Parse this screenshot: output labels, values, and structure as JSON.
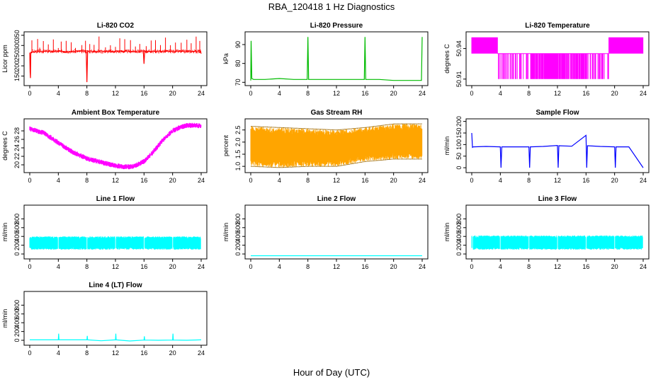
{
  "figure": {
    "title": "RBA_120418  1 Hz Diagnostics",
    "xlabel": "Hour of Day (UTC)"
  },
  "chart_data": [
    {
      "type": "line",
      "title": "Li-820 CO2",
      "ylabel": "Licor ppm",
      "color": "#ff0000",
      "xlim": [
        0,
        24
      ],
      "xticks": [
        0,
        4,
        8,
        12,
        16,
        20,
        24
      ],
      "ylim": [
        110,
        360
      ],
      "yticks": [
        150,
        200,
        250,
        300,
        350
      ],
      "series": [
        {
          "x": [
            0,
            0.05,
            0.1,
            0.15,
            0.3,
            1,
            2,
            3,
            4,
            5,
            6,
            7,
            7.9,
            8,
            8.1,
            9,
            10,
            11,
            12,
            13,
            14,
            15,
            15.9,
            16,
            16.1,
            17,
            18,
            19,
            20,
            21,
            22,
            23,
            23.9,
            24
          ],
          "y": [
            265,
            170,
            140,
            265,
            268,
            270,
            272,
            271,
            272,
            270,
            271,
            272,
            272,
            120,
            272,
            271,
            272,
            270,
            271,
            272,
            271,
            272,
            272,
            210,
            272,
            271,
            270,
            272,
            271,
            272,
            270,
            271,
            272,
            260
          ]
        }
      ],
      "spike_hours": [
        0.3,
        1.1,
        1.4,
        1.9,
        2.6,
        3.3,
        4.0,
        4.4,
        5.1,
        5.8,
        6.4,
        7.3,
        7.8,
        8.4,
        9.0,
        9.7,
        10.6,
        11.3,
        12.0,
        12.6,
        13.3,
        14.1,
        14.8,
        15.4,
        16.3,
        17.0,
        17.6,
        18.3,
        19.0,
        19.7,
        20.4,
        21.2,
        22.0,
        22.6,
        23.3,
        23.8
      ],
      "spike_peak": 345,
      "band": [
        265,
        280
      ]
    },
    {
      "type": "line",
      "title": "Li-820 Pressure",
      "ylabel": "kPa",
      "color": "#00bb00",
      "xlim": [
        0,
        24
      ],
      "xticks": [
        0,
        4,
        8,
        12,
        16,
        20,
        24
      ],
      "ylim": [
        69,
        96
      ],
      "yticks": [
        70,
        80,
        90
      ],
      "series": [
        {
          "x": [
            0,
            0.05,
            0.15,
            0.4,
            2,
            4,
            6,
            7.9,
            8,
            8.1,
            10,
            12,
            14,
            15.9,
            16,
            16.1,
            18,
            20,
            22,
            23.9,
            24
          ],
          "y": [
            71,
            92,
            72,
            71.5,
            71.5,
            72,
            71.5,
            71.5,
            94,
            71.5,
            71.5,
            71.5,
            71.5,
            71.5,
            94,
            71.5,
            71.5,
            71,
            71,
            71,
            94
          ]
        }
      ]
    },
    {
      "type": "line",
      "title": "Li-820 Temperature",
      "ylabel": "degrees C",
      "color": "#ff00ff",
      "xlim": [
        0,
        24
      ],
      "xticks": [
        0,
        4,
        8,
        12,
        16,
        20,
        24
      ],
      "ylim": [
        50.905,
        50.955
      ],
      "yticks": [
        50.91,
        50.94
      ],
      "levels": [
        50.91,
        50.935,
        50.96
      ],
      "state_intervals": [
        [
          0,
          3.6,
          "high"
        ],
        [
          3.6,
          4.1,
          "low"
        ],
        [
          4.1,
          19.2,
          "low"
        ],
        [
          19.2,
          24,
          "high"
        ]
      ]
    },
    {
      "type": "line",
      "title": "Ambient Box Temperature",
      "ylabel": "degrees C",
      "color": "#ff00ff",
      "xlim": [
        0,
        24
      ],
      "xticks": [
        0,
        4,
        8,
        12,
        16,
        20,
        24
      ],
      "ylim": [
        18.5,
        30.5
      ],
      "yticks": [
        20,
        22,
        24,
        26,
        28
      ],
      "series": [
        {
          "x": [
            0,
            2,
            4,
            6,
            8,
            10,
            12,
            13,
            14,
            15,
            16,
            17,
            18,
            19,
            20,
            21,
            22,
            23,
            24
          ],
          "y": [
            28.5,
            27.5,
            25.2,
            23,
            21.5,
            20.6,
            19.8,
            19.6,
            19.5,
            20,
            20.8,
            22.5,
            24.5,
            26.5,
            28,
            28.8,
            29.3,
            29.3,
            29.2
          ]
        }
      ],
      "band_halfwidth": 0.6
    },
    {
      "type": "line",
      "title": "Gas Stream RH",
      "ylabel": "percent",
      "color": "#ffa500",
      "xlim": [
        0,
        24
      ],
      "xticks": [
        0,
        4,
        8,
        12,
        16,
        20,
        24
      ],
      "ylim": [
        0.8,
        2.9
      ],
      "yticks": [
        1.0,
        1.5,
        2.0,
        2.5
      ],
      "series": [
        {
          "name": "upper",
          "x": [
            0,
            4,
            8,
            12,
            16,
            20,
            24
          ],
          "y": [
            2.65,
            2.6,
            2.55,
            2.5,
            2.6,
            2.75,
            2.75
          ]
        },
        {
          "name": "lower",
          "x": [
            0,
            4,
            8,
            12,
            16,
            20,
            24
          ],
          "y": [
            1.0,
            0.95,
            1.0,
            1.0,
            1.2,
            1.3,
            1.3
          ]
        }
      ]
    },
    {
      "type": "line",
      "title": "Sample Flow",
      "ylabel": "ml/min",
      "color": "#0000ff",
      "xlim": [
        0,
        24
      ],
      "xticks": [
        0,
        4,
        8,
        12,
        16,
        20,
        24
      ],
      "ylim": [
        -15,
        205
      ],
      "yticks": [
        0,
        50,
        100,
        150,
        200
      ],
      "series": [
        {
          "x": [
            0,
            0.1,
            0.2,
            2,
            4,
            4.1,
            4.2,
            6,
            8,
            8.1,
            8.2,
            10,
            12,
            12.1,
            12.2,
            14,
            16,
            16.1,
            16.2,
            18,
            20,
            20.1,
            20.2,
            22,
            24
          ],
          "y": [
            150,
            88,
            90,
            92,
            90,
            0,
            90,
            90,
            90,
            0,
            90,
            92,
            96,
            0,
            95,
            93,
            140,
            0,
            95,
            92,
            90,
            0,
            90,
            90,
            0
          ]
        }
      ]
    },
    {
      "type": "line",
      "title": "Line 1 Flow",
      "ylabel": "ml/min",
      "color": "#00ffff",
      "xlim": [
        0,
        24
      ],
      "xticks": [
        0,
        4,
        8,
        12,
        16,
        20,
        24
      ],
      "ylim": [
        -80,
        1080
      ],
      "yticks": [
        0,
        200,
        400,
        600,
        800
      ],
      "band": [
        100,
        400
      ],
      "gaps": [
        4,
        8,
        12,
        16,
        20,
        24
      ]
    },
    {
      "type": "line",
      "title": "Line 2 Flow",
      "ylabel": "ml/min",
      "color": "#00ffff",
      "xlim": [
        0,
        24
      ],
      "xticks": [
        0,
        4,
        8,
        12,
        16,
        20,
        24
      ],
      "ylim": [
        -80,
        1080
      ],
      "yticks": [
        0,
        200,
        400,
        600,
        800
      ],
      "series": [
        {
          "x": [
            0,
            24
          ],
          "y": [
            -40,
            -40
          ]
        }
      ]
    },
    {
      "type": "line",
      "title": "Line 3 Flow",
      "ylabel": "ml/min",
      "color": "#00ffff",
      "xlim": [
        0,
        24
      ],
      "xticks": [
        0,
        4,
        8,
        12,
        16,
        20,
        24
      ],
      "ylim": [
        -80,
        1080
      ],
      "yticks": [
        0,
        200,
        400,
        600,
        800
      ],
      "band": [
        100,
        420
      ],
      "gaps": [
        0.1,
        4,
        8,
        12,
        16,
        20,
        24
      ]
    },
    {
      "type": "line",
      "title": "Line 4 (LT) Flow",
      "ylabel": "ml/min",
      "color": "#00ffff",
      "xlim": [
        0,
        24
      ],
      "xticks": [
        0,
        4,
        8,
        12,
        16,
        20,
        24
      ],
      "ylim": [
        -80,
        1080
      ],
      "yticks": [
        0,
        200,
        400,
        600,
        800
      ],
      "series": [
        {
          "x": [
            0,
            2,
            4,
            4.05,
            4.1,
            6,
            8,
            8.05,
            8.1,
            10,
            12,
            12.05,
            12.1,
            14,
            16,
            16.05,
            16.1,
            18,
            20,
            20.05,
            20.1,
            22,
            24
          ],
          "y": [
            10,
            10,
            10,
            150,
            10,
            10,
            10,
            100,
            10,
            -10,
            10,
            150,
            10,
            -15,
            5,
            90,
            5,
            0,
            5,
            150,
            5,
            0,
            10
          ]
        }
      ]
    }
  ]
}
